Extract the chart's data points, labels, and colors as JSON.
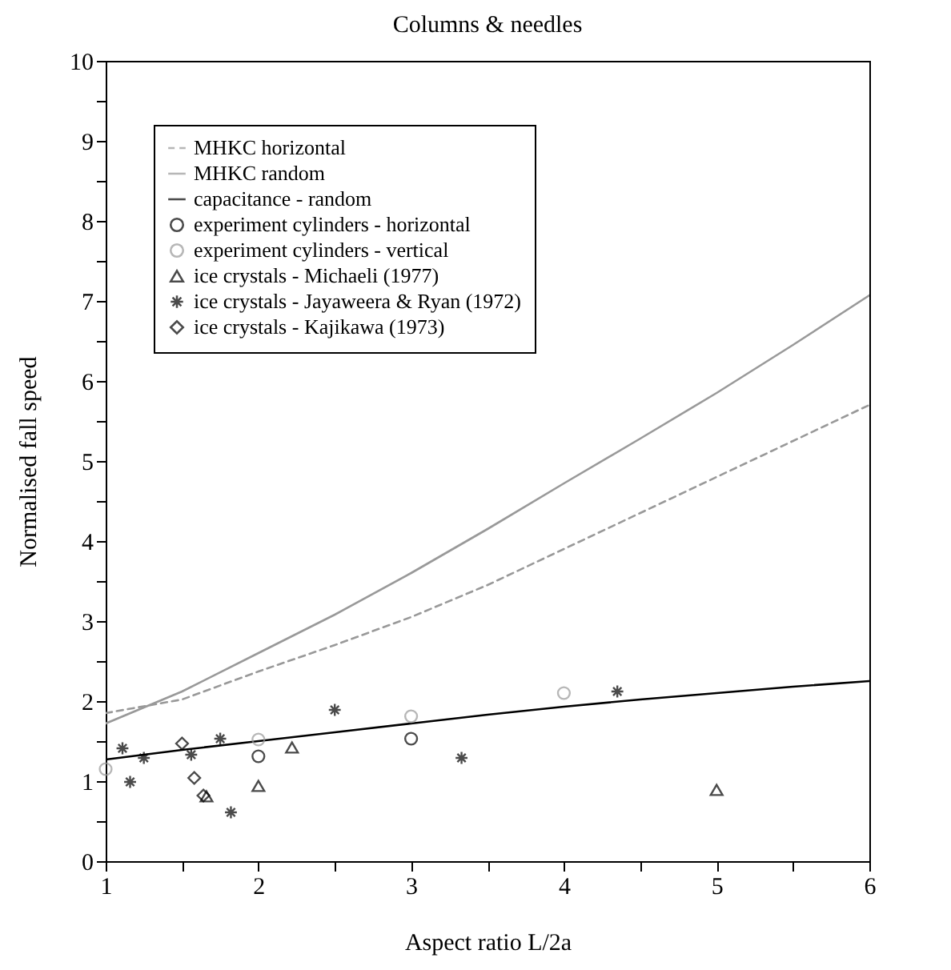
{
  "chart_data": {
    "type": "scatter",
    "title": "Columns & needles",
    "xlabel": "Aspect ratio L/2a",
    "ylabel": "Normalised fall speed",
    "xlim": [
      1,
      6
    ],
    "xticks": [
      1,
      {
        "value": 1.5,
        "label": null
      },
      2,
      {
        "value": 2.5,
        "label": null
      },
      3,
      {
        "value": 3.5,
        "label": null
      },
      4,
      {
        "value": 4.5,
        "label": null
      },
      5,
      {
        "value": 5.5,
        "label": null
      },
      6
    ],
    "ylim": [
      0,
      10
    ],
    "yticks": [
      0,
      {
        "value": 0.5,
        "label": null
      },
      1,
      {
        "value": 1.5,
        "label": null
      },
      2,
      {
        "value": 2.5,
        "label": null
      },
      3,
      {
        "value": 3.5,
        "label": null
      },
      4,
      {
        "value": 4.5,
        "label": null
      },
      5,
      {
        "value": 5.5,
        "label": null
      },
      6,
      {
        "value": 6.5,
        "label": null
      },
      7,
      {
        "value": 7.5,
        "label": null
      },
      8,
      {
        "value": 8.5,
        "label": null
      },
      9,
      {
        "value": 9.5,
        "label": null
      },
      10
    ],
    "grid": false,
    "legend": "top left",
    "series": [
      {
        "name": "MHKC horizontal",
        "type": "line",
        "line_style": "dashed",
        "color": "#999999",
        "x": [
          1,
          1.5,
          2,
          2.5,
          3,
          3.5,
          4,
          4.5,
          5,
          5.5,
          6
        ],
        "values": [
          1.85,
          2.02,
          2.37,
          2.7,
          3.05,
          3.45,
          3.9,
          4.35,
          4.8,
          5.25,
          5.7
        ]
      },
      {
        "name": "MHKC random",
        "type": "line",
        "line_style": "solid",
        "color": "#999999",
        "x": [
          1,
          1.5,
          2,
          2.5,
          3,
          3.5,
          4,
          4.5,
          5,
          5.5,
          6
        ],
        "values": [
          1.72,
          2.12,
          2.6,
          3.08,
          3.6,
          4.15,
          4.72,
          5.28,
          5.85,
          6.45,
          7.07
        ]
      },
      {
        "name": "capacitance - random",
        "type": "line",
        "line_style": "solid",
        "color": "#000000",
        "x": [
          1,
          1.5,
          2,
          2.5,
          3,
          3.5,
          4,
          4.5,
          5,
          5.5,
          6
        ],
        "values": [
          1.27,
          1.39,
          1.5,
          1.61,
          1.72,
          1.83,
          1.93,
          2.02,
          2.1,
          2.18,
          2.25
        ]
      },
      {
        "name": "experiment cylinders - horizontal",
        "marker": "circle",
        "color": "#000000",
        "x": [
          2,
          3
        ],
        "values": [
          1.31,
          1.53
        ]
      },
      {
        "name": "experiment cylinders - vertical",
        "marker": "circle",
        "color": "#999999",
        "x": [
          1,
          2,
          3,
          4
        ],
        "values": [
          1.15,
          1.52,
          1.81,
          2.1
        ]
      },
      {
        "name": "ice crystals - Michaeli (1977)",
        "marker": "triangle",
        "color": "#000000",
        "x": [
          1.66,
          2,
          2.22,
          5
        ],
        "values": [
          0.81,
          0.94,
          1.42,
          0.89
        ]
      },
      {
        "name": "ice crystals - Jayaweera & Ryan (1972)",
        "marker": "cross",
        "color": "#000000",
        "x": [
          1.11,
          1.16,
          1.25,
          1.56,
          1.75,
          1.82,
          2.5,
          3.33,
          4.35
        ],
        "values": [
          1.41,
          0.99,
          1.29,
          1.33,
          1.53,
          0.61,
          1.89,
          1.29,
          2.12
        ]
      },
      {
        "name": "ice crystals - Kajikawa (1973)",
        "marker": "diamond",
        "color": "#000000",
        "x": [
          1.5,
          1.58,
          1.64
        ],
        "values": [
          1.47,
          1.04,
          0.82
        ]
      }
    ]
  }
}
